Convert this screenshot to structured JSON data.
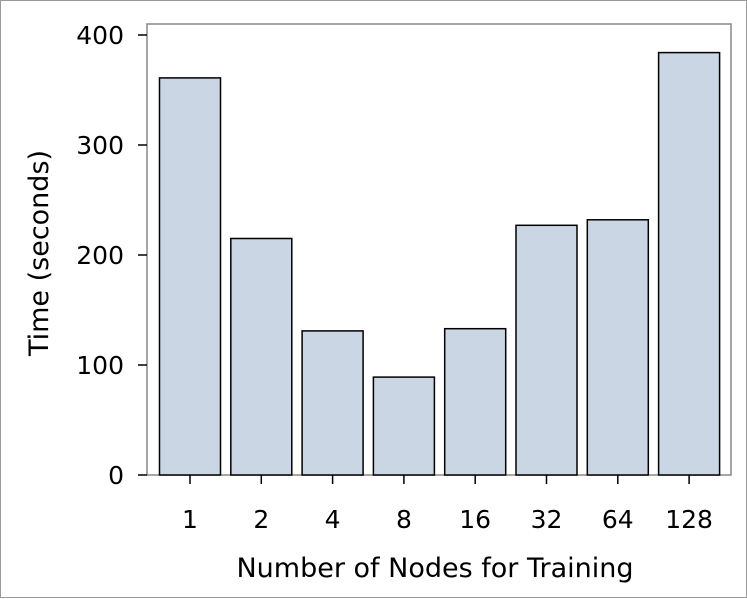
{
  "chart_data": {
    "type": "bar",
    "title": "",
    "xlabel": "Number of Nodes for Training",
    "ylabel": "Time (seconds)",
    "categories": [
      "1",
      "2",
      "4",
      "8",
      "16",
      "32",
      "64",
      "128"
    ],
    "values": [
      361,
      215,
      131,
      89,
      133,
      227,
      232,
      384
    ],
    "ylim": [
      0,
      400
    ],
    "yticks": [
      0,
      100,
      200,
      300,
      400
    ],
    "ytick_labels": [
      "0",
      "100",
      "200",
      "300",
      "400"
    ],
    "grid": false,
    "bar_color": "#cbd6e5",
    "bar_edge_color": "#000000"
  }
}
